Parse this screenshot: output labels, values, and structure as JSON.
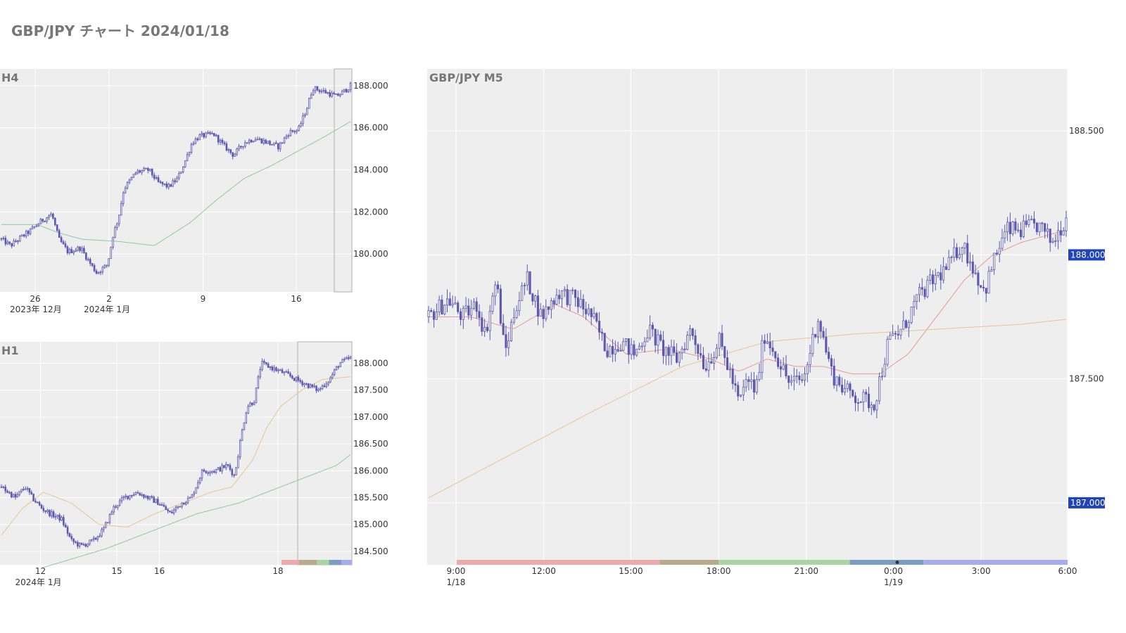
{
  "title": "GBP/JPY チャート 2024/01/18",
  "colors": {
    "background": "#ffffff",
    "plot_bg": "#eeeeee",
    "grid": "#ffffff",
    "candle": "#5c57b0",
    "ma_green": "#8fc7a7",
    "ma_orange": "#e8c493",
    "ma_red": "#e59a95",
    "price_tag": "#1f43b8",
    "session_colors": [
      "#eeaaaa",
      "#b7ab8a",
      "#abd4a4",
      "#7a9fc3",
      "#a4aeee"
    ]
  },
  "chart_data": [
    {
      "id": "h4",
      "type": "candlestick",
      "title": "H4",
      "ylim": [
        178.2,
        188.8
      ],
      "yticks": [
        180,
        182,
        184,
        186,
        188
      ],
      "ytick_labels": [
        "180.000",
        "182.000",
        "184.000",
        "186.000",
        "188.000"
      ],
      "xticks": [
        {
          "label": "26",
          "sub": "2023年 12月",
          "pos": 0.1
        },
        {
          "label": "2",
          "sub": "2024年 1月",
          "pos": 0.31
        },
        {
          "label": "9",
          "sub": "",
          "pos": 0.577
        },
        {
          "label": "16",
          "sub": "",
          "pos": 0.842
        }
      ],
      "candles": 170,
      "path": [
        [
          0,
          180.7
        ],
        [
          10,
          180.4
        ],
        [
          22,
          180.8
        ],
        [
          32,
          181.1
        ],
        [
          45,
          181.6
        ],
        [
          56,
          181.9
        ],
        [
          64,
          180.7
        ],
        [
          74,
          180.1
        ],
        [
          88,
          180.3
        ],
        [
          98,
          179.6
        ],
        [
          106,
          179.1
        ],
        [
          118,
          179.5
        ],
        [
          124,
          180.9
        ],
        [
          130,
          181.7
        ],
        [
          136,
          183.1
        ],
        [
          150,
          183.9
        ],
        [
          164,
          184.0
        ],
        [
          174,
          183.4
        ],
        [
          186,
          183.2
        ],
        [
          196,
          183.6
        ],
        [
          204,
          184.4
        ],
        [
          212,
          185.3
        ],
        [
          220,
          185.6
        ],
        [
          236,
          185.7
        ],
        [
          246,
          185.2
        ],
        [
          258,
          184.7
        ],
        [
          270,
          185.3
        ],
        [
          282,
          185.5
        ],
        [
          296,
          185.3
        ],
        [
          308,
          185.1
        ],
        [
          320,
          185.8
        ],
        [
          330,
          185.9
        ],
        [
          340,
          187.0
        ],
        [
          346,
          187.9
        ],
        [
          360,
          187.7
        ],
        [
          372,
          187.5
        ],
        [
          380,
          187.7
        ],
        [
          388,
          188.0
        ]
      ],
      "ma": [
        {
          "color": "ma_green",
          "path": [
            [
              0,
              181.4
            ],
            [
              40,
              181.4
            ],
            [
              64,
              181.0
            ],
            [
              90,
              180.7
            ],
            [
              130,
              180.6
            ],
            [
              170,
              180.4
            ],
            [
              210,
              181.5
            ],
            [
              240,
              182.6
            ],
            [
              270,
              183.6
            ],
            [
              300,
              184.2
            ],
            [
              330,
              184.9
            ],
            [
              360,
              185.6
            ],
            [
              388,
              186.3
            ]
          ]
        }
      ],
      "highlight_x": 0.95
    },
    {
      "id": "h1",
      "type": "candlestick",
      "title": "H1",
      "ylim": [
        184.25,
        188.4
      ],
      "yticks": [
        184.5,
        185,
        185.5,
        186,
        186.5,
        187,
        187.5,
        188
      ],
      "ytick_labels": [
        "184.500",
        "185.000",
        "185.500",
        "186.000",
        "186.500",
        "187.000",
        "187.500",
        "188.000"
      ],
      "xticks": [
        {
          "label": "12",
          "sub": "2024年 1月",
          "pos": 0.115
        },
        {
          "label": "15",
          "sub": "",
          "pos": 0.332
        },
        {
          "label": "16",
          "sub": "",
          "pos": 0.453
        },
        {
          "label": "18",
          "sub": "",
          "pos": 0.79
        }
      ],
      "candles": 175,
      "path": [
        [
          0,
          185.7
        ],
        [
          20,
          185.5
        ],
        [
          34,
          185.7
        ],
        [
          44,
          185.5
        ],
        [
          58,
          185.3
        ],
        [
          70,
          185.2
        ],
        [
          86,
          185.1
        ],
        [
          100,
          184.7
        ],
        [
          114,
          184.6
        ],
        [
          132,
          184.7
        ],
        [
          146,
          184.9
        ],
        [
          160,
          185.3
        ],
        [
          176,
          185.5
        ],
        [
          194,
          185.6
        ],
        [
          210,
          185.5
        ],
        [
          226,
          185.4
        ],
        [
          242,
          185.2
        ],
        [
          258,
          185.4
        ],
        [
          272,
          185.5
        ],
        [
          288,
          186.0
        ],
        [
          306,
          186.0
        ],
        [
          324,
          186.1
        ],
        [
          334,
          185.9
        ],
        [
          344,
          186.7
        ],
        [
          352,
          187.2
        ],
        [
          362,
          187.3
        ],
        [
          372,
          188.0
        ],
        [
          390,
          187.9
        ],
        [
          408,
          187.8
        ],
        [
          422,
          187.7
        ],
        [
          438,
          187.6
        ],
        [
          454,
          187.5
        ],
        [
          470,
          187.7
        ],
        [
          484,
          188.0
        ],
        [
          500,
          188.1
        ]
      ],
      "ma": [
        {
          "color": "ma_orange",
          "path": [
            [
              0,
              184.8
            ],
            [
              30,
              185.3
            ],
            [
              60,
              185.6
            ],
            [
              100,
              185.4
            ],
            [
              140,
              185.0
            ],
            [
              180,
              184.95
            ],
            [
              220,
              185.2
            ],
            [
              260,
              185.4
            ],
            [
              300,
              185.6
            ],
            [
              330,
              185.7
            ],
            [
              360,
              186.2
            ],
            [
              380,
              186.8
            ],
            [
              400,
              187.2
            ],
            [
              430,
              187.5
            ],
            [
              460,
              187.7
            ],
            [
              500,
              187.75
            ]
          ]
        },
        {
          "color": "ma_green",
          "path": [
            [
              60,
              184.2
            ],
            [
              150,
              184.55
            ],
            [
              220,
              184.9
            ],
            [
              280,
              185.2
            ],
            [
              340,
              185.4
            ],
            [
              400,
              185.7
            ],
            [
              440,
              185.9
            ],
            [
              480,
              186.1
            ],
            [
              500,
              186.3
            ]
          ]
        }
      ],
      "highlight_x": 0.846,
      "sessions": [
        0.85,
        0.9,
        0.935,
        0.97,
        1.0
      ]
    },
    {
      "id": "m5",
      "type": "candlestick",
      "title": "GBP/JPY M5",
      "ylim": [
        186.75,
        188.75
      ],
      "yticks": [
        187,
        187.5,
        188,
        188.5
      ],
      "ytick_labels": [
        "187.000",
        "187.500",
        "188.000",
        "188.500"
      ],
      "price_tags": [
        "188.000",
        "187.000"
      ],
      "xticks": [
        {
          "label": "9:00",
          "sub": "1/18",
          "pos": 0.045
        },
        {
          "label": "12:00",
          "sub": "",
          "pos": 0.182
        },
        {
          "label": "15:00",
          "sub": "",
          "pos": 0.318
        },
        {
          "label": "18:00",
          "sub": "",
          "pos": 0.455
        },
        {
          "label": "21:00",
          "sub": "",
          "pos": 0.592
        },
        {
          "label": "0:00",
          "sub": "1/19",
          "pos": 0.728
        },
        {
          "label": "3:00",
          "sub": "",
          "pos": 0.865
        },
        {
          "label": "6:00",
          "sub": "",
          "pos": 1.0
        }
      ],
      "candles": 240,
      "path": [
        [
          0,
          187.75
        ],
        [
          14,
          187.82
        ],
        [
          24,
          187.75
        ],
        [
          34,
          187.8
        ],
        [
          40,
          187.68
        ],
        [
          48,
          187.9
        ],
        [
          54,
          187.6
        ],
        [
          62,
          187.8
        ],
        [
          70,
          187.9
        ],
        [
          80,
          187.75
        ],
        [
          92,
          187.85
        ],
        [
          104,
          187.82
        ],
        [
          116,
          187.75
        ],
        [
          126,
          187.62
        ],
        [
          136,
          187.65
        ],
        [
          146,
          187.6
        ],
        [
          156,
          187.7
        ],
        [
          166,
          187.62
        ],
        [
          176,
          187.58
        ],
        [
          186,
          187.7
        ],
        [
          196,
          187.55
        ],
        [
          206,
          187.65
        ],
        [
          214,
          187.52
        ],
        [
          220,
          187.4
        ],
        [
          226,
          187.5
        ],
        [
          232,
          187.45
        ],
        [
          238,
          187.68
        ],
        [
          246,
          187.6
        ],
        [
          256,
          187.48
        ],
        [
          266,
          187.5
        ],
        [
          276,
          187.75
        ],
        [
          286,
          187.52
        ],
        [
          296,
          187.45
        ],
        [
          306,
          187.42
        ],
        [
          316,
          187.4
        ],
        [
          326,
          187.65
        ],
        [
          336,
          187.7
        ],
        [
          346,
          187.82
        ],
        [
          358,
          187.9
        ],
        [
          368,
          187.95
        ],
        [
          378,
          188.05
        ],
        [
          386,
          187.95
        ],
        [
          394,
          187.85
        ],
        [
          402,
          188.0
        ],
        [
          410,
          188.1
        ],
        [
          420,
          188.1
        ],
        [
          432,
          188.12
        ],
        [
          442,
          188.05
        ],
        [
          452,
          188.15
        ]
      ],
      "ma": [
        {
          "color": "ma_red",
          "path": [
            [
              0,
              187.75
            ],
            [
              30,
              187.75
            ],
            [
              60,
              187.7
            ],
            [
              90,
              187.8
            ],
            [
              110,
              187.75
            ],
            [
              140,
              187.6
            ],
            [
              170,
              187.62
            ],
            [
              200,
              187.58
            ],
            [
              220,
              187.53
            ],
            [
              240,
              187.58
            ],
            [
              260,
              187.55
            ],
            [
              280,
              187.55
            ],
            [
              300,
              187.52
            ],
            [
              320,
              187.52
            ],
            [
              340,
              187.6
            ],
            [
              360,
              187.75
            ],
            [
              380,
              187.9
            ],
            [
              400,
              188.0
            ],
            [
              420,
              188.05
            ],
            [
              452,
              188.1
            ]
          ]
        },
        {
          "color": "ma_orange",
          "path": [
            [
              0,
              187.02
            ],
            [
              60,
              187.2
            ],
            [
              120,
              187.38
            ],
            [
              180,
              187.55
            ],
            [
              240,
              187.65
            ],
            [
              300,
              187.68
            ],
            [
              360,
              187.7
            ],
            [
              420,
              187.72
            ],
            [
              452,
              187.74
            ]
          ]
        }
      ],
      "sessions": [
        0.363,
        0.455,
        0.66,
        0.775,
        1.0
      ]
    }
  ]
}
